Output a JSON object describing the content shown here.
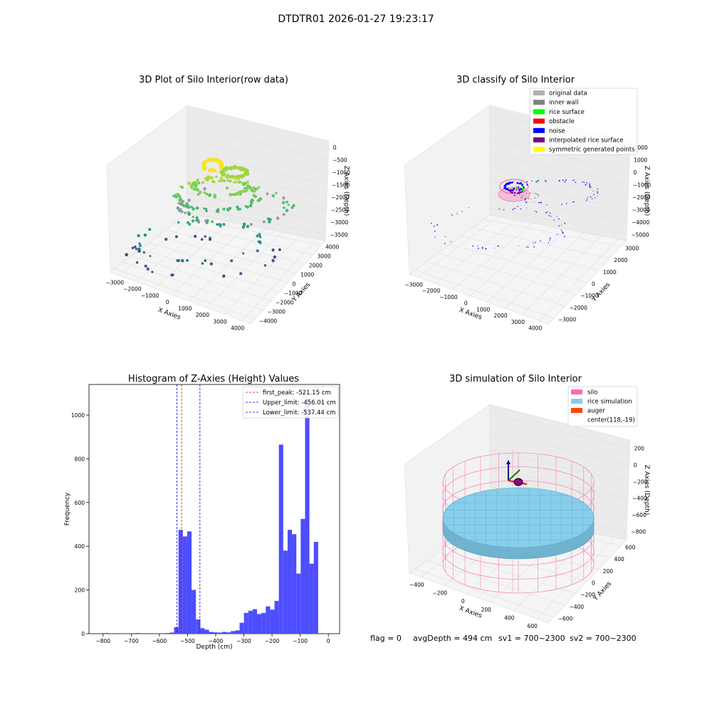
{
  "figure": {
    "title": "DTDTR01 2026-01-27 19:23:17",
    "status": {
      "flag": "flag = 0",
      "avg_depth": "avgDepth = 494 cm",
      "sv1": "sv1 = 700~2300",
      "sv2": "sv2 = 700~2300"
    }
  },
  "colors": {
    "hist_bar": "#4d4dff",
    "first_peak_line": "#ff0000",
    "limit_line": "#0000ff",
    "silo": "#ff69b4",
    "rice": "#87ceeb",
    "auger": "#ff4500",
    "orig": "#b0b0b0",
    "wall": "#808080",
    "rice_surface": "#00ff00",
    "obstacle": "#ff0000",
    "noise": "#0000ff",
    "interp": "#800080",
    "sym": "#ffff00"
  },
  "chart_data": [
    {
      "type": "scatter",
      "title": "3D Plot of Silo Interior(row data)",
      "xlabel": "X Axies",
      "ylabel": "Y Axies",
      "zlabel": "Z Axies (Depth)",
      "xticks": [
        "−3000",
        "−2000",
        "−1000",
        "0",
        "1000",
        "2000",
        "3000",
        "4000"
      ],
      "yticks": [
        "−4000",
        "−3000",
        "−2000",
        "−1000",
        "0",
        "1000",
        "2000",
        "3000",
        "4000"
      ],
      "zticks": [
        "0",
        "−500",
        "−1000",
        "−1500",
        "−2000",
        "−2500",
        "−3000",
        "−3500"
      ],
      "xlim": [
        -3300,
        4200
      ],
      "ylim": [
        -4200,
        4200
      ],
      "zlim": [
        -3700,
        200
      ]
    },
    {
      "type": "scatter",
      "title": "3D classify of Silo Interior",
      "xlabel": "X Axies",
      "ylabel": "Y Axies",
      "zlabel": "Z Axies (Depth)",
      "xticks": [
        "−3000",
        "−2000",
        "−1000",
        "0",
        "1000",
        "2000",
        "3000",
        "4000"
      ],
      "yticks": [
        "−3000",
        "−2000",
        "−1000",
        "0",
        "1000",
        "2000",
        "3000"
      ],
      "zticks": [
        "2000",
        "1000",
        "0",
        "−1000",
        "−2000",
        "−3000",
        "−4000",
        "−5000"
      ],
      "xlim": [
        -3300,
        4200
      ],
      "ylim": [
        -3500,
        3500
      ],
      "zlim": [
        -5300,
        2200
      ],
      "legend": [
        {
          "label": "original data",
          "color": "#b0b0b0"
        },
        {
          "label": "inner wall",
          "color": "#808080"
        },
        {
          "label": "rice surface",
          "color": "#00ff00"
        },
        {
          "label": "obstacle",
          "color": "#ff0000"
        },
        {
          "label": "noise",
          "color": "#0000ff"
        },
        {
          "label": "interpolated rice surface",
          "color": "#800080"
        },
        {
          "label": "symmetric generated points",
          "color": "#ffff00"
        }
      ]
    },
    {
      "type": "bar",
      "title": "Histogram of Z-Axies (Height) Values",
      "xlabel": "Depth (cm)",
      "ylabel": "Frequency",
      "xlim": [
        -850,
        40
      ],
      "ylim": [
        0,
        1140
      ],
      "xticks": [
        -800,
        -700,
        -600,
        -500,
        -400,
        -300,
        -200,
        -100,
        0
      ],
      "yticks": [
        0,
        200,
        400,
        600,
        800,
        1000
      ],
      "bin_width": 15.5,
      "bins": [
        {
          "x": -787,
          "v": 3
        },
        {
          "x": -732,
          "v": 2
        },
        {
          "x": -678,
          "v": 3
        },
        {
          "x": -601,
          "v": 2
        },
        {
          "x": -570,
          "v": 3
        },
        {
          "x": -555,
          "v": 5
        },
        {
          "x": -540,
          "v": 30
        },
        {
          "x": -524.5,
          "v": 475
        },
        {
          "x": -509,
          "v": 445
        },
        {
          "x": -493.5,
          "v": 468
        },
        {
          "x": -478,
          "v": 200
        },
        {
          "x": -462.5,
          "v": 65
        },
        {
          "x": -447,
          "v": 25
        },
        {
          "x": -431.5,
          "v": 18
        },
        {
          "x": -416,
          "v": 8
        },
        {
          "x": -400.5,
          "v": 6
        },
        {
          "x": -385,
          "v": 5
        },
        {
          "x": -369.5,
          "v": 8
        },
        {
          "x": -354,
          "v": 6
        },
        {
          "x": -338.5,
          "v": 12
        },
        {
          "x": -323,
          "v": 15
        },
        {
          "x": -307.5,
          "v": 50
        },
        {
          "x": -292,
          "v": 95
        },
        {
          "x": -276.5,
          "v": 105
        },
        {
          "x": -261,
          "v": 112
        },
        {
          "x": -245.5,
          "v": 90
        },
        {
          "x": -230,
          "v": 95
        },
        {
          "x": -214.5,
          "v": 125
        },
        {
          "x": -199,
          "v": 110
        },
        {
          "x": -183.5,
          "v": 150
        },
        {
          "x": -168,
          "v": 865
        },
        {
          "x": -152.5,
          "v": 380
        },
        {
          "x": -137,
          "v": 475
        },
        {
          "x": -121.5,
          "v": 455
        },
        {
          "x": -106,
          "v": 275
        },
        {
          "x": -90.5,
          "v": 525
        },
        {
          "x": -75,
          "v": 1075
        },
        {
          "x": -59.5,
          "v": 320
        },
        {
          "x": -44,
          "v": 420
        }
      ],
      "vlines": [
        {
          "x": -521.15,
          "label": "first_peak: -521.15 cm",
          "color": "#ff0000"
        },
        {
          "x": -456.01,
          "label": "Upper_limit: -456.01 cm",
          "color": "#0000ff"
        },
        {
          "x": -537.44,
          "label": "Lower_limit: -537.44 cm",
          "color": "#0000ff"
        }
      ]
    },
    {
      "type": "scatter",
      "title": "3D simulation of Silo Interior",
      "xlabel": "X Axies",
      "ylabel": "Y Axies",
      "zlabel": "Z Axies (Depth)",
      "xticks": [
        "−400",
        "−200",
        "0",
        "200",
        "400",
        "600"
      ],
      "yticks": [
        "−600",
        "−400",
        "−200",
        "0",
        "200",
        "400",
        "600"
      ],
      "zticks": [
        "200",
        "0",
        "−200",
        "−400",
        "−600",
        "−800"
      ],
      "xlim": [
        -500,
        700
      ],
      "ylim": [
        -700,
        700
      ],
      "zlim": [
        -900,
        300
      ],
      "legend": [
        {
          "label": "silo",
          "color": "#ff69b4"
        },
        {
          "label": "rice simulation",
          "color": "#87ceeb"
        },
        {
          "label": "auger",
          "color": "#ff4500"
        },
        {
          "label": "center(118,-19)",
          "color": ""
        }
      ]
    }
  ]
}
